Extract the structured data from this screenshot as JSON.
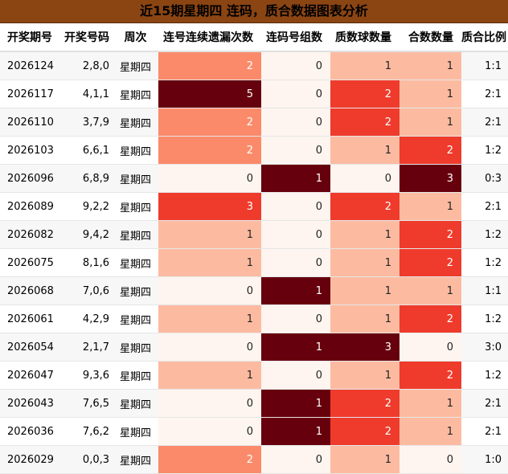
{
  "title": "近15期星期四 连码，质合数据图表分析",
  "headers": [
    "开奖期号",
    "开奖号码",
    "周次",
    "连号连续遗漏次数",
    "连码号组数",
    "质数球数量",
    "合数数量",
    "质合比例"
  ],
  "rows": [
    [
      "2026124",
      "2,8,0",
      "星期四",
      2,
      0,
      1,
      1,
      "1:1"
    ],
    [
      "2026117",
      "4,1,1",
      "星期四",
      5,
      0,
      2,
      1,
      "2:1"
    ],
    [
      "2026110",
      "3,7,9",
      "星期四",
      2,
      0,
      2,
      1,
      "2:1"
    ],
    [
      "2026103",
      "6,6,1",
      "星期四",
      2,
      0,
      1,
      2,
      "1:2"
    ],
    [
      "2026096",
      "6,8,9",
      "星期四",
      0,
      1,
      0,
      3,
      "0:3"
    ],
    [
      "2026089",
      "9,2,2",
      "星期四",
      3,
      0,
      2,
      1,
      "2:1"
    ],
    [
      "2026082",
      "9,4,2",
      "星期四",
      1,
      0,
      1,
      2,
      "1:2"
    ],
    [
      "2026075",
      "8,1,6",
      "星期四",
      1,
      0,
      1,
      2,
      "1:2"
    ],
    [
      "2026068",
      "7,0,6",
      "星期四",
      0,
      1,
      1,
      1,
      "1:1"
    ],
    [
      "2026061",
      "4,2,9",
      "星期四",
      1,
      0,
      1,
      2,
      "1:2"
    ],
    [
      "2026054",
      "2,1,7",
      "星期四",
      0,
      1,
      3,
      0,
      "3:0"
    ],
    [
      "2026047",
      "9,3,6",
      "星期四",
      1,
      0,
      1,
      2,
      "1:2"
    ],
    [
      "2026043",
      "7,6,5",
      "星期四",
      0,
      1,
      2,
      1,
      "2:1"
    ],
    [
      "2026036",
      "7,6,2",
      "星期四",
      0,
      1,
      2,
      1,
      "2:1"
    ],
    [
      "2026029",
      "0,0,3",
      "星期四",
      2,
      0,
      1,
      0,
      "1:0"
    ]
  ],
  "colors": {
    "title_bg": "#8B4513",
    "heat_0": "#fff5f0",
    "heat_1": "#fcbba1",
    "heat_2": "#fb8a6a",
    "heat_3": "#ef3b2c",
    "heat_max": "#67000d"
  }
}
